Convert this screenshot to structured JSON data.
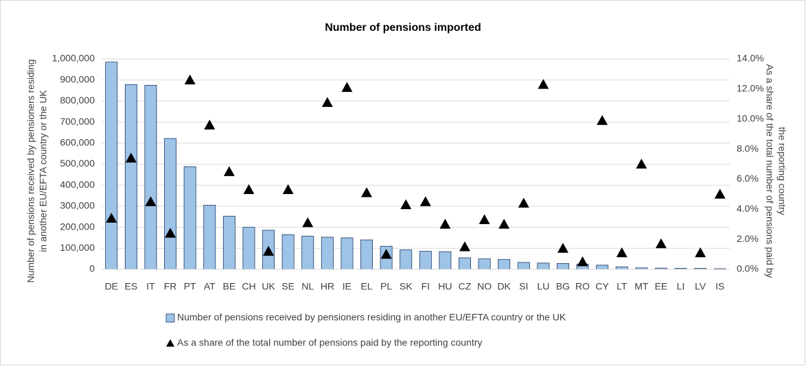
{
  "chart_data": {
    "type": "bar_scatter",
    "title": "Number of pensions imported",
    "y_label": [
      "Number of pensions received by pensioners residing",
      "in another EU/EFTA country or the UK"
    ],
    "y2_label": [
      "As a share of the total number of pensions paid by",
      "the reporting country"
    ],
    "categories": [
      "DE",
      "ES",
      "IT",
      "FR",
      "PT",
      "AT",
      "BE",
      "CH",
      "UK",
      "SE",
      "NL",
      "HR",
      "IE",
      "EL",
      "PL",
      "SK",
      "FI",
      "HU",
      "CZ",
      "NO",
      "DK",
      "SI",
      "LU",
      "BG",
      "RO",
      "CY",
      "LT",
      "MT",
      "EE",
      "LI",
      "LV",
      "IS"
    ],
    "series": [
      {
        "name": "Number of pensions received by pensioners residing in another EU/EFTA country or the UK",
        "type": "bar",
        "color": "#9dc3e6",
        "edge": "#1f3864",
        "values": [
          985000,
          878000,
          875000,
          622000,
          488000,
          305000,
          253000,
          200000,
          186000,
          165000,
          158000,
          153000,
          150000,
          140000,
          110000,
          93000,
          86000,
          84000,
          55000,
          50000,
          47000,
          33000,
          30000,
          28000,
          25000,
          20000,
          12000,
          7000,
          6000,
          5000,
          5000,
          3000
        ]
      },
      {
        "name": "As a share of the total number of pensions paid by the reporting country",
        "type": "scatter",
        "axis": "y2",
        "color": "#000000",
        "values": [
          3.4,
          7.4,
          4.5,
          2.4,
          12.6,
          9.6,
          6.5,
          5.3,
          1.2,
          5.3,
          3.1,
          11.1,
          12.1,
          5.1,
          1.0,
          4.3,
          4.5,
          3.0,
          1.5,
          3.3,
          3.0,
          4.4,
          12.3,
          1.4,
          0.5,
          9.9,
          1.1,
          7.0,
          1.7,
          null,
          1.1,
          5.0
        ]
      }
    ],
    "ylim": [
      0,
      1000000
    ],
    "yticks": [
      0,
      {
        "value": 100000,
        "label": "100,000"
      },
      {
        "value": 200000,
        "label": "200,000"
      },
      {
        "value": 300000,
        "label": "300,000"
      },
      {
        "value": 400000,
        "label": "400,000"
      },
      {
        "value": 500000,
        "label": "500,000"
      },
      {
        "value": 600000,
        "label": "600,000"
      },
      {
        "value": 700000,
        "label": "700,000"
      },
      {
        "value": 800000,
        "label": "800,000"
      },
      {
        "value": 900000,
        "label": "900,000"
      },
      {
        "value": 1000000,
        "label": "1,000,000"
      }
    ],
    "y2lim": [
      0,
      14
    ],
    "y2ticks": [
      {
        "value": 0,
        "label": "0.0%"
      },
      {
        "value": 2,
        "label": "2.0%"
      },
      {
        "value": 4,
        "label": "4.0%"
      },
      {
        "value": 6,
        "label": "6.0%"
      },
      {
        "value": 8,
        "label": "8.0%"
      },
      {
        "value": 10,
        "label": "10.0%"
      },
      {
        "value": 12,
        "label": "12.0%"
      },
      {
        "value": 14,
        "label": "14.0%"
      }
    ],
    "grid": true
  }
}
